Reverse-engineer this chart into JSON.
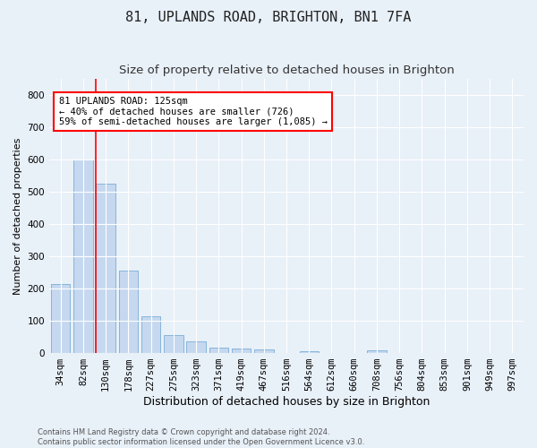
{
  "title": "81, UPLANDS ROAD, BRIGHTON, BN1 7FA",
  "subtitle": "Size of property relative to detached houses in Brighton",
  "xlabel": "Distribution of detached houses by size in Brighton",
  "ylabel": "Number of detached properties",
  "bar_labels": [
    "34sqm",
    "82sqm",
    "130sqm",
    "178sqm",
    "227sqm",
    "275sqm",
    "323sqm",
    "371sqm",
    "419sqm",
    "467sqm",
    "516sqm",
    "564sqm",
    "612sqm",
    "660sqm",
    "708sqm",
    "756sqm",
    "804sqm",
    "853sqm",
    "901sqm",
    "949sqm",
    "997sqm"
  ],
  "bar_values": [
    215,
    600,
    525,
    255,
    115,
    57,
    35,
    18,
    15,
    12,
    0,
    7,
    0,
    0,
    8,
    0,
    0,
    0,
    0,
    0,
    0
  ],
  "bar_color": "#c5d8f0",
  "bar_edge_color": "#7aadd4",
  "background_color": "#e8f0f8",
  "grid_color": "#ffffff",
  "ylim": [
    0,
    850
  ],
  "property_label": "81 UPLANDS ROAD: 125sqm",
  "annotation_line1": "← 40% of detached houses are smaller (726)",
  "annotation_line2": "59% of semi-detached houses are larger (1,085) →",
  "vline_bar_index": 2,
  "footer1": "Contains HM Land Registry data © Crown copyright and database right 2024.",
  "footer2": "Contains public sector information licensed under the Open Government Licence v3.0.",
  "title_fontsize": 11,
  "subtitle_fontsize": 9.5,
  "xlabel_fontsize": 9,
  "ylabel_fontsize": 8,
  "tick_fontsize": 7.5,
  "annotation_fontsize": 7.5,
  "footer_fontsize": 6
}
